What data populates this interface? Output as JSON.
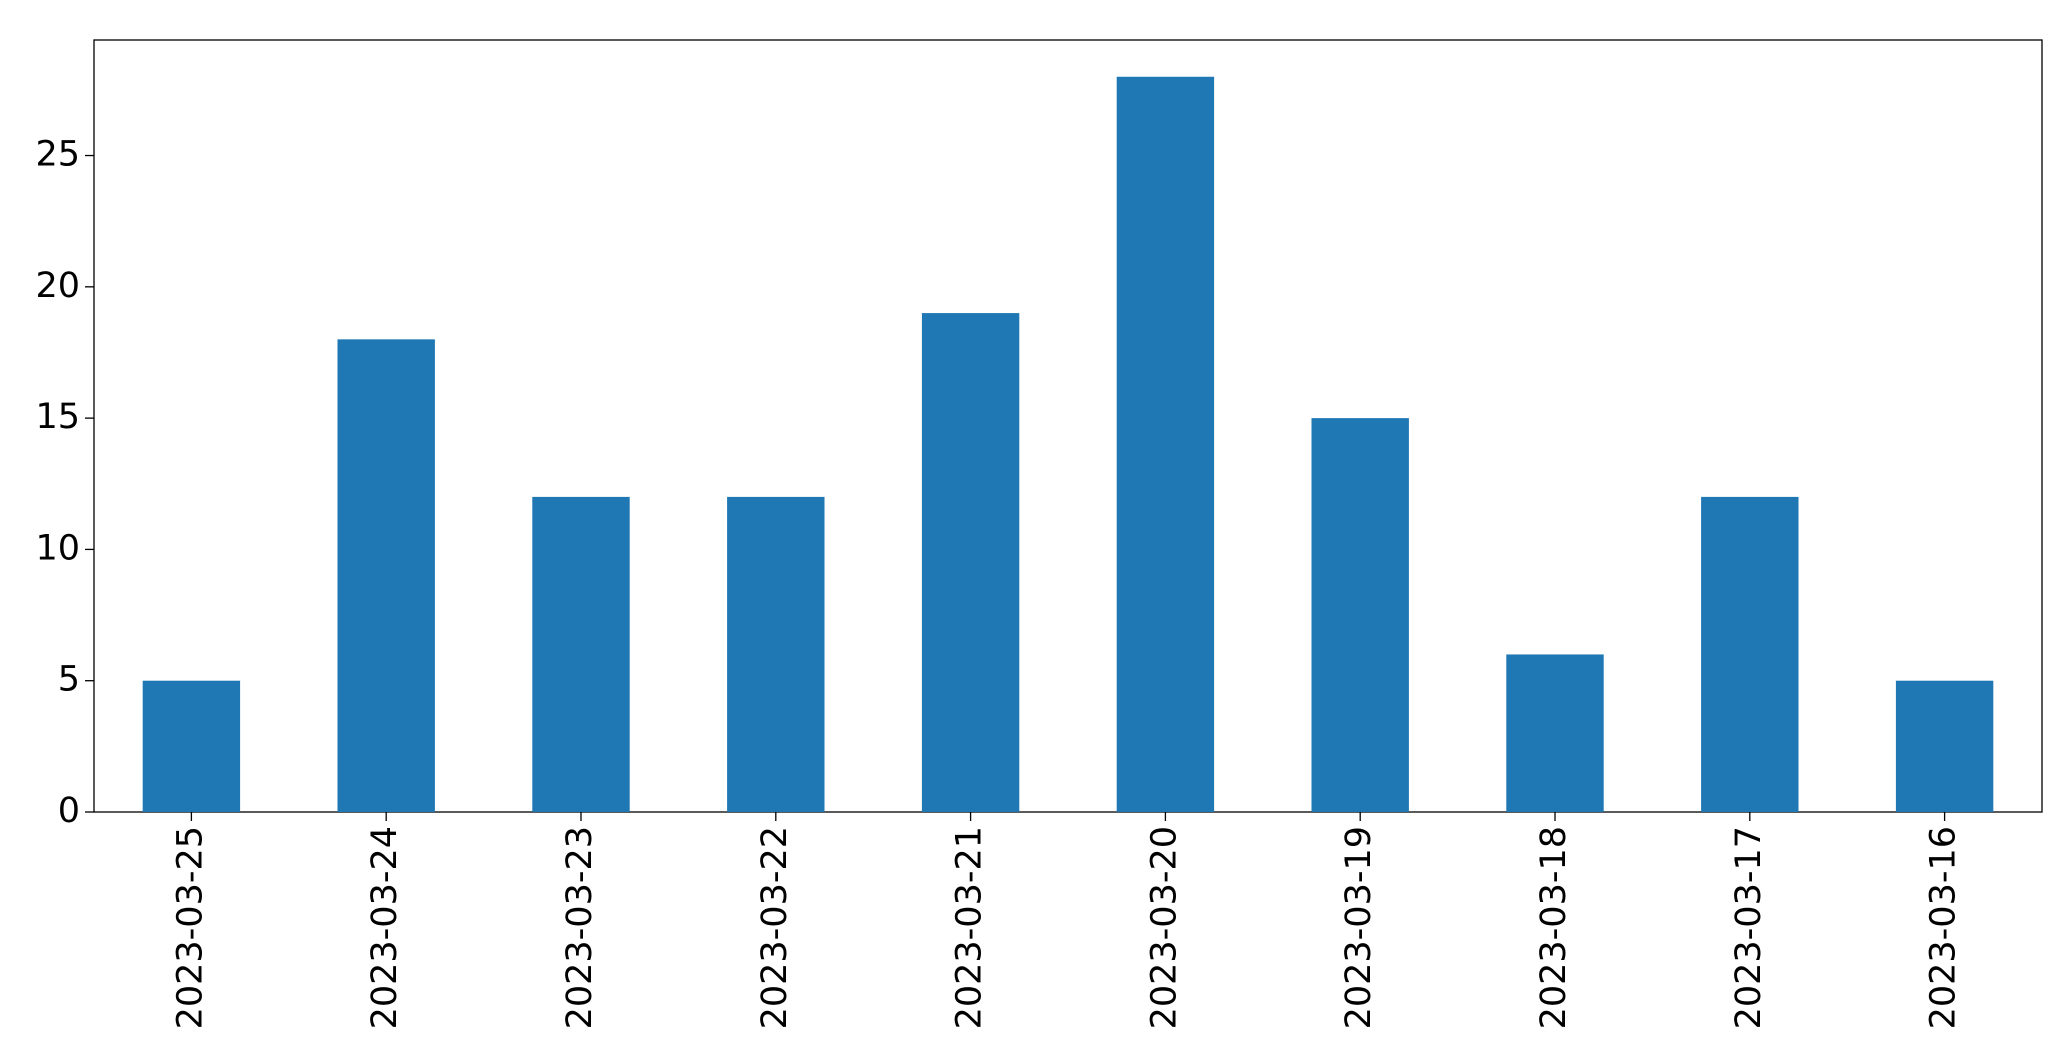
{
  "chart_data": {
    "type": "bar",
    "categories": [
      "2023-03-25",
      "2023-03-24",
      "2023-03-23",
      "2023-03-22",
      "2023-03-21",
      "2023-03-20",
      "2023-03-19",
      "2023-03-18",
      "2023-03-17",
      "2023-03-16"
    ],
    "values": [
      5,
      18,
      12,
      12,
      19,
      28,
      15,
      6,
      12,
      5
    ],
    "color": "#1f77b4",
    "ylim": [
      0,
      29.4
    ],
    "yticks": [
      0,
      5,
      10,
      15,
      20,
      25
    ],
    "grid": false
  }
}
